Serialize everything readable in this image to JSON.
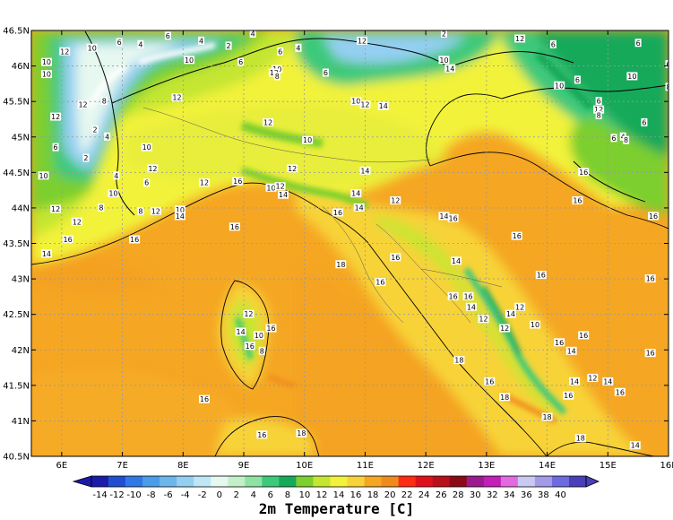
{
  "map": {
    "title": "2m Temperature [C]",
    "lon_range": [
      5.5,
      16.0
    ],
    "lat_range": [
      40.5,
      46.5
    ],
    "lon_ticks": [
      "6E",
      "7E",
      "8E",
      "9E",
      "10E",
      "11E",
      "12E",
      "13E",
      "14E",
      "15E",
      "16E"
    ],
    "lat_ticks": [
      "46.5N",
      "46N",
      "45.5N",
      "45N",
      "44.5N",
      "44N",
      "43.5N",
      "43N",
      "42.5N",
      "42N",
      "41.5N",
      "41N",
      "40.5N"
    ],
    "colorbar": {
      "labels": [
        "-14",
        "-12",
        "-10",
        "-8",
        "-6",
        "-4",
        "-2",
        "0",
        "2",
        "4",
        "6",
        "8",
        "10",
        "12",
        "14",
        "16",
        "18",
        "20",
        "22",
        "24",
        "26",
        "28",
        "30",
        "32",
        "34",
        "36",
        "38",
        "40"
      ],
      "colors": [
        "#1b1ba8",
        "#1f4fd0",
        "#2f78e6",
        "#4a9be8",
        "#6cb6ee",
        "#94cff2",
        "#bfe6f7",
        "#e6f8f0",
        "#c3f0c8",
        "#8ee3a2",
        "#3cc97a",
        "#16a95a",
        "#7ccf2e",
        "#c4e632",
        "#f2f23a",
        "#f7d339",
        "#f5a623",
        "#f08a1c",
        "#ff2b12",
        "#e0101a",
        "#b80f1a",
        "#8a0a18",
        "#9b1b8e",
        "#c21fb7",
        "#e26ae0",
        "#c9c9f2",
        "#a49be8",
        "#6c6ce0",
        "#4a3fb8"
      ]
    },
    "contour_labels": [
      {
        "v": "10",
        "lon": 5.75,
        "lat": 46.05
      },
      {
        "v": "12",
        "lon": 6.05,
        "lat": 46.2
      },
      {
        "v": "10",
        "lon": 6.5,
        "lat": 46.25
      },
      {
        "v": "6",
        "lon": 6.95,
        "lat": 46.33
      },
      {
        "v": "4",
        "lon": 7.3,
        "lat": 46.3
      },
      {
        "v": "6",
        "lon": 7.75,
        "lat": 46.42
      },
      {
        "v": "4",
        "lon": 8.3,
        "lat": 46.35
      },
      {
        "v": "2",
        "lon": 8.75,
        "lat": 46.28
      },
      {
        "v": "4",
        "lon": 9.15,
        "lat": 46.45
      },
      {
        "v": "6",
        "lon": 9.6,
        "lat": 46.2
      },
      {
        "v": "4",
        "lon": 9.9,
        "lat": 46.25
      },
      {
        "v": "12",
        "lon": 10.95,
        "lat": 46.35
      },
      {
        "v": "2",
        "lon": 12.3,
        "lat": 46.45
      },
      {
        "v": "12",
        "lon": 13.55,
        "lat": 46.38
      },
      {
        "v": "6",
        "lon": 14.1,
        "lat": 46.3
      },
      {
        "v": "6",
        "lon": 15.5,
        "lat": 46.32
      },
      {
        "v": "6",
        "lon": 16.0,
        "lat": 46.02
      },
      {
        "v": "10",
        "lon": 8.1,
        "lat": 46.08
      },
      {
        "v": "12",
        "lon": 7.9,
        "lat": 45.55
      },
      {
        "v": "6",
        "lon": 8.95,
        "lat": 46.05
      },
      {
        "v": "10",
        "lon": 9.55,
        "lat": 45.95
      },
      {
        "v": "12",
        "lon": 9.5,
        "lat": 45.9
      },
      {
        "v": "6",
        "lon": 10.35,
        "lat": 45.9
      },
      {
        "v": "10",
        "lon": 10.85,
        "lat": 45.5
      },
      {
        "v": "12",
        "lon": 11.0,
        "lat": 45.45
      },
      {
        "v": "14",
        "lon": 11.3,
        "lat": 45.43
      },
      {
        "v": "10",
        "lon": 12.3,
        "lat": 46.08
      },
      {
        "v": "14",
        "lon": 12.4,
        "lat": 45.96
      },
      {
        "v": "10",
        "lon": 14.2,
        "lat": 45.72
      },
      {
        "v": "6",
        "lon": 14.5,
        "lat": 45.8
      },
      {
        "v": "10",
        "lon": 5.75,
        "lat": 45.88
      },
      {
        "v": "12",
        "lon": 5.9,
        "lat": 45.28
      },
      {
        "v": "8",
        "lon": 6.7,
        "lat": 45.5
      },
      {
        "v": "2",
        "lon": 6.55,
        "lat": 45.1
      },
      {
        "v": "4",
        "lon": 6.75,
        "lat": 45.0
      },
      {
        "v": "12",
        "lon": 6.35,
        "lat": 45.45
      },
      {
        "v": "6",
        "lon": 5.9,
        "lat": 44.85
      },
      {
        "v": "2",
        "lon": 6.4,
        "lat": 44.7
      },
      {
        "v": "10",
        "lon": 5.7,
        "lat": 44.45
      },
      {
        "v": "12",
        "lon": 5.9,
        "lat": 43.98
      },
      {
        "v": "12",
        "lon": 6.25,
        "lat": 43.8
      },
      {
        "v": "8",
        "lon": 6.65,
        "lat": 44.0
      },
      {
        "v": "10",
        "lon": 6.85,
        "lat": 44.2
      },
      {
        "v": "4",
        "lon": 6.9,
        "lat": 44.45
      },
      {
        "v": "6",
        "lon": 7.4,
        "lat": 44.35
      },
      {
        "v": "10",
        "lon": 7.4,
        "lat": 44.85
      },
      {
        "v": "12",
        "lon": 7.5,
        "lat": 44.55
      },
      {
        "v": "8",
        "lon": 7.3,
        "lat": 43.95
      },
      {
        "v": "12",
        "lon": 7.55,
        "lat": 43.95
      },
      {
        "v": "10",
        "lon": 7.95,
        "lat": 43.97
      },
      {
        "v": "14",
        "lon": 7.95,
        "lat": 43.88
      },
      {
        "v": "12",
        "lon": 8.35,
        "lat": 44.35
      },
      {
        "v": "16",
        "lon": 8.9,
        "lat": 44.37
      },
      {
        "v": "12",
        "lon": 9.4,
        "lat": 45.2
      },
      {
        "v": "10",
        "lon": 10.05,
        "lat": 44.95
      },
      {
        "v": "12",
        "lon": 9.8,
        "lat": 44.55
      },
      {
        "v": "10",
        "lon": 9.45,
        "lat": 44.28
      },
      {
        "v": "12",
        "lon": 9.6,
        "lat": 44.3
      },
      {
        "v": "14",
        "lon": 9.65,
        "lat": 44.18
      },
      {
        "v": "14",
        "lon": 11.0,
        "lat": 44.52
      },
      {
        "v": "14",
        "lon": 10.85,
        "lat": 44.2
      },
      {
        "v": "16",
        "lon": 10.55,
        "lat": 43.93
      },
      {
        "v": "14",
        "lon": 10.9,
        "lat": 44.0
      },
      {
        "v": "12",
        "lon": 11.5,
        "lat": 44.1
      },
      {
        "v": "14",
        "lon": 12.3,
        "lat": 43.88
      },
      {
        "v": "16",
        "lon": 12.45,
        "lat": 43.85
      },
      {
        "v": "16",
        "lon": 6.1,
        "lat": 43.55
      },
      {
        "v": "14",
        "lon": 5.75,
        "lat": 43.35
      },
      {
        "v": "16",
        "lon": 7.2,
        "lat": 43.55
      },
      {
        "v": "16",
        "lon": 8.85,
        "lat": 43.73
      },
      {
        "v": "18",
        "lon": 10.6,
        "lat": 43.2
      },
      {
        "v": "16",
        "lon": 11.25,
        "lat": 42.95
      },
      {
        "v": "16",
        "lon": 11.5,
        "lat": 43.3
      },
      {
        "v": "14",
        "lon": 12.5,
        "lat": 43.25
      },
      {
        "v": "16",
        "lon": 12.7,
        "lat": 42.75
      },
      {
        "v": "16",
        "lon": 12.45,
        "lat": 42.75
      },
      {
        "v": "14",
        "lon": 12.75,
        "lat": 42.6
      },
      {
        "v": "12",
        "lon": 12.95,
        "lat": 42.43
      },
      {
        "v": "14",
        "lon": 13.4,
        "lat": 42.5
      },
      {
        "v": "12",
        "lon": 13.55,
        "lat": 42.6
      },
      {
        "v": "16",
        "lon": 13.9,
        "lat": 43.05
      },
      {
        "v": "16",
        "lon": 13.5,
        "lat": 43.6
      },
      {
        "v": "12",
        "lon": 13.3,
        "lat": 42.3
      },
      {
        "v": "10",
        "lon": 13.8,
        "lat": 42.35
      },
      {
        "v": "16",
        "lon": 14.2,
        "lat": 42.1
      },
      {
        "v": "14",
        "lon": 14.4,
        "lat": 41.98
      },
      {
        "v": "14",
        "lon": 14.45,
        "lat": 41.55
      },
      {
        "v": "12",
        "lon": 14.75,
        "lat": 41.6
      },
      {
        "v": "14",
        "lon": 15.0,
        "lat": 41.55
      },
      {
        "v": "16",
        "lon": 15.2,
        "lat": 41.4
      },
      {
        "v": "16",
        "lon": 14.35,
        "lat": 41.35
      },
      {
        "v": "16",
        "lon": 14.6,
        "lat": 42.2
      },
      {
        "v": "18",
        "lon": 12.55,
        "lat": 41.85
      },
      {
        "v": "16",
        "lon": 13.05,
        "lat": 41.55
      },
      {
        "v": "18",
        "lon": 13.3,
        "lat": 41.33
      },
      {
        "v": "18",
        "lon": 14.0,
        "lat": 41.05
      },
      {
        "v": "16",
        "lon": 15.7,
        "lat": 41.95
      },
      {
        "v": "16",
        "lon": 15.7,
        "lat": 43.0
      },
      {
        "v": "16",
        "lon": 15.75,
        "lat": 43.88
      },
      {
        "v": "16",
        "lon": 14.5,
        "lat": 44.1
      },
      {
        "v": "16",
        "lon": 14.6,
        "lat": 44.5
      },
      {
        "v": "14",
        "lon": 15.45,
        "lat": 40.65
      },
      {
        "v": "18",
        "lon": 14.55,
        "lat": 40.75
      },
      {
        "v": "16",
        "lon": 8.35,
        "lat": 41.3
      },
      {
        "v": "16",
        "lon": 9.3,
        "lat": 40.8
      },
      {
        "v": "18",
        "lon": 9.95,
        "lat": 40.82
      },
      {
        "v": "12",
        "lon": 9.08,
        "lat": 42.5
      },
      {
        "v": "14",
        "lon": 8.95,
        "lat": 42.25
      },
      {
        "v": "10",
        "lon": 9.25,
        "lat": 42.2
      },
      {
        "v": "16",
        "lon": 9.1,
        "lat": 42.05
      },
      {
        "v": "16",
        "lon": 9.45,
        "lat": 42.3
      },
      {
        "v": "8",
        "lon": 9.3,
        "lat": 41.98
      },
      {
        "v": "8",
        "lon": 9.55,
        "lat": 45.85
      },
      {
        "v": "12",
        "lon": 14.85,
        "lat": 45.38
      },
      {
        "v": "6",
        "lon": 14.85,
        "lat": 45.5
      },
      {
        "v": "4",
        "lon": 15.25,
        "lat": 45.0
      },
      {
        "v": "6",
        "lon": 15.1,
        "lat": 44.98
      },
      {
        "v": "8",
        "lon": 15.3,
        "lat": 44.95
      },
      {
        "v": "8",
        "lon": 14.85,
        "lat": 45.3
      },
      {
        "v": "6",
        "lon": 15.6,
        "lat": 45.2
      },
      {
        "v": "8",
        "lon": 16.0,
        "lat": 45.7
      },
      {
        "v": "10",
        "lon": 15.4,
        "lat": 45.85
      }
    ]
  }
}
